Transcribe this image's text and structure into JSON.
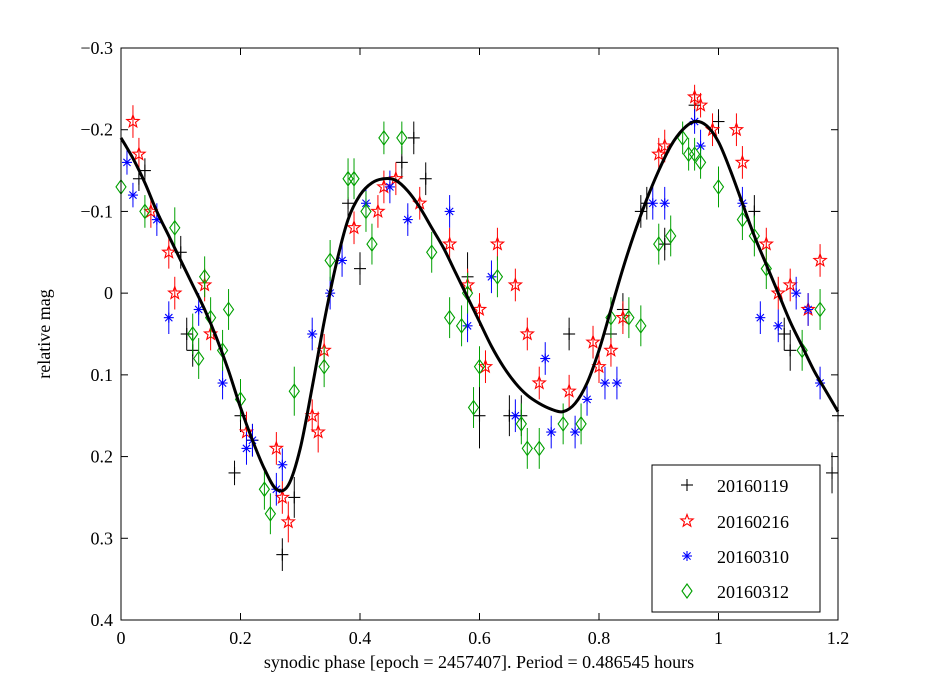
{
  "chart_data": {
    "type": "scatter",
    "title": "",
    "xlabel": "synodic phase [epoch = 2457407].  Period = 0.486545 hours",
    "ylabel": "relative mag",
    "xlim": [
      0,
      1.2
    ],
    "ylim": [
      -0.3,
      0.4
    ],
    "y_inverted": true,
    "grid": false,
    "x_ticks": [
      0,
      0.2,
      0.4,
      0.6,
      0.8,
      1,
      1.2
    ],
    "x_tick_labels": [
      "0",
      "0.2",
      "0.4",
      "0.6",
      "0.8",
      "1",
      "1.2"
    ],
    "y_ticks": [
      -0.3,
      -0.2,
      -0.1,
      0,
      0.1,
      0.2,
      0.3,
      0.4
    ],
    "y_tick_labels": [
      "−0.3",
      "−0.2",
      "−0.1",
      "0",
      "0.1",
      "0.2",
      "0.3",
      "0.4"
    ],
    "legend_position": "bottom-right",
    "series": [
      {
        "name": "20160119",
        "marker": "plus",
        "color": "#000000",
        "x": [
          0.03,
          0.04,
          0.1,
          0.11,
          0.12,
          0.19,
          0.2,
          0.22,
          0.27,
          0.29,
          0.38,
          0.4,
          0.47,
          0.49,
          0.51,
          0.58,
          0.6,
          0.65,
          0.67,
          0.75,
          0.82,
          0.84,
          0.87,
          0.88,
          0.91,
          0.96,
          1.0,
          1.06,
          1.11,
          1.12,
          1.19,
          1.2
        ],
        "y": [
          -0.14,
          -0.15,
          -0.05,
          0.05,
          0.07,
          0.22,
          0.15,
          0.18,
          0.32,
          0.25,
          -0.11,
          -0.03,
          -0.16,
          -0.19,
          -0.14,
          -0.02,
          0.15,
          0.15,
          0.15,
          0.05,
          0.05,
          0.02,
          -0.1,
          -0.11,
          -0.06,
          -0.23,
          -0.21,
          -0.1,
          0.05,
          0.07,
          0.22,
          0.15
        ],
        "err": [
          0.015,
          0.015,
          0.02,
          0.02,
          0.02,
          0.015,
          0.02,
          0.02,
          0.02,
          0.025,
          0.02,
          0.02,
          0.02,
          0.02,
          0.02,
          0.03,
          0.04,
          0.025,
          0.025,
          0.02,
          0.02,
          0.02,
          0.02,
          0.02,
          0.02,
          0.015,
          0.015,
          0.02,
          0.02,
          0.025,
          0.025,
          0.02
        ]
      },
      {
        "name": "20160216",
        "marker": "star",
        "color": "#ff0000",
        "x": [
          0.02,
          0.03,
          0.05,
          0.08,
          0.09,
          0.14,
          0.15,
          0.21,
          0.26,
          0.27,
          0.28,
          0.32,
          0.33,
          0.34,
          0.39,
          0.43,
          0.44,
          0.46,
          0.5,
          0.55,
          0.58,
          0.6,
          0.61,
          0.63,
          0.66,
          0.68,
          0.7,
          0.75,
          0.79,
          0.8,
          0.82,
          0.84,
          0.9,
          0.91,
          0.96,
          0.97,
          0.99,
          1.03,
          1.04,
          1.08,
          1.1,
          1.12,
          1.15,
          1.17
        ],
        "y": [
          -0.21,
          -0.17,
          -0.1,
          -0.05,
          0.0,
          -0.01,
          0.05,
          0.17,
          0.19,
          0.25,
          0.28,
          0.15,
          0.17,
          0.07,
          -0.08,
          -0.1,
          -0.13,
          -0.14,
          -0.11,
          -0.06,
          -0.01,
          0.02,
          0.09,
          -0.06,
          -0.01,
          0.05,
          0.11,
          0.12,
          0.06,
          0.09,
          0.07,
          0.03,
          -0.17,
          -0.18,
          -0.24,
          -0.23,
          -0.2,
          -0.2,
          -0.16,
          -0.06,
          0.0,
          -0.01,
          0.02,
          -0.04
        ],
        "err": [
          0.02,
          0.02,
          0.02,
          0.02,
          0.02,
          0.02,
          0.02,
          0.025,
          0.02,
          0.02,
          0.025,
          0.02,
          0.025,
          0.02,
          0.02,
          0.02,
          0.02,
          0.02,
          0.02,
          0.02,
          0.02,
          0.02,
          0.02,
          0.02,
          0.02,
          0.02,
          0.02,
          0.02,
          0.02,
          0.02,
          0.02,
          0.02,
          0.02,
          0.02,
          0.015,
          0.015,
          0.02,
          0.02,
          0.02,
          0.02,
          0.02,
          0.02,
          0.02,
          0.02
        ]
      },
      {
        "name": "20160310",
        "marker": "asterisk",
        "color": "#0000ff",
        "x": [
          0.01,
          0.02,
          0.06,
          0.08,
          0.13,
          0.17,
          0.21,
          0.22,
          0.26,
          0.27,
          0.32,
          0.35,
          0.37,
          0.41,
          0.45,
          0.48,
          0.55,
          0.58,
          0.62,
          0.66,
          0.71,
          0.72,
          0.76,
          0.78,
          0.81,
          0.83,
          0.89,
          0.91,
          0.96,
          0.97,
          1.04,
          1.07,
          1.1,
          1.13,
          1.15,
          1.17
        ],
        "y": [
          -0.16,
          -0.12,
          -0.09,
          0.03,
          0.02,
          0.11,
          0.19,
          0.18,
          0.24,
          0.21,
          0.05,
          0.0,
          -0.04,
          -0.11,
          -0.13,
          -0.09,
          -0.1,
          0.04,
          -0.02,
          0.15,
          0.08,
          0.17,
          0.17,
          0.13,
          0.11,
          0.11,
          -0.11,
          -0.11,
          -0.21,
          -0.18,
          -0.11,
          0.03,
          0.04,
          0.0,
          0.02,
          0.11
        ],
        "err": [
          0.015,
          0.015,
          0.02,
          0.02,
          0.02,
          0.02,
          0.02,
          0.02,
          0.02,
          0.02,
          0.02,
          0.02,
          0.02,
          0.02,
          0.02,
          0.02,
          0.02,
          0.02,
          0.02,
          0.02,
          0.02,
          0.02,
          0.02,
          0.02,
          0.02,
          0.02,
          0.02,
          0.02,
          0.015,
          0.02,
          0.02,
          0.02,
          0.02,
          0.02,
          0.02,
          0.02
        ]
      },
      {
        "name": "20160312",
        "marker": "diamond",
        "color": "#00a000",
        "x": [
          0.0,
          0.04,
          0.09,
          0.12,
          0.13,
          0.14,
          0.15,
          0.17,
          0.18,
          0.2,
          0.24,
          0.25,
          0.29,
          0.34,
          0.35,
          0.38,
          0.39,
          0.41,
          0.42,
          0.44,
          0.47,
          0.52,
          0.55,
          0.57,
          0.58,
          0.59,
          0.6,
          0.63,
          0.67,
          0.68,
          0.7,
          0.74,
          0.77,
          0.82,
          0.85,
          0.87,
          0.9,
          0.92,
          0.94,
          0.95,
          0.96,
          0.97,
          1.0,
          1.04,
          1.06,
          1.08,
          1.14,
          1.17
        ],
        "y": [
          -0.13,
          -0.1,
          -0.08,
          0.05,
          0.08,
          -0.02,
          0.03,
          0.07,
          0.02,
          0.13,
          0.24,
          0.27,
          0.12,
          0.09,
          -0.04,
          -0.14,
          -0.14,
          -0.1,
          -0.06,
          -0.19,
          -0.19,
          -0.05,
          0.03,
          0.04,
          0.0,
          0.14,
          0.09,
          -0.02,
          0.16,
          0.19,
          0.19,
          0.16,
          0.16,
          0.03,
          0.03,
          0.04,
          -0.06,
          -0.07,
          -0.19,
          -0.17,
          -0.17,
          -0.16,
          -0.13,
          -0.09,
          -0.07,
          -0.03,
          0.07,
          0.02
        ],
        "err": [
          0.02,
          0.02,
          0.025,
          0.025,
          0.025,
          0.025,
          0.025,
          0.025,
          0.025,
          0.025,
          0.025,
          0.025,
          0.03,
          0.025,
          0.025,
          0.025,
          0.025,
          0.025,
          0.025,
          0.02,
          0.02,
          0.025,
          0.025,
          0.025,
          0.025,
          0.025,
          0.025,
          0.025,
          0.025,
          0.025,
          0.025,
          0.025,
          0.025,
          0.025,
          0.025,
          0.025,
          0.025,
          0.025,
          0.02,
          0.02,
          0.02,
          0.02,
          0.025,
          0.025,
          0.025,
          0.025,
          0.025,
          0.025
        ]
      }
    ],
    "fit_curve": {
      "name": "fit",
      "color": "#000000",
      "x": [
        0.0,
        0.02,
        0.04,
        0.06,
        0.08,
        0.1,
        0.12,
        0.14,
        0.16,
        0.18,
        0.2,
        0.22,
        0.24,
        0.26,
        0.28,
        0.3,
        0.32,
        0.34,
        0.36,
        0.38,
        0.4,
        0.42,
        0.44,
        0.46,
        0.48,
        0.5,
        0.52,
        0.54,
        0.56,
        0.58,
        0.6,
        0.62,
        0.64,
        0.66,
        0.68,
        0.7,
        0.72,
        0.74,
        0.76,
        0.78,
        0.8,
        0.82,
        0.84,
        0.86,
        0.88,
        0.9,
        0.92,
        0.94,
        0.96,
        0.98,
        1.0,
        1.02,
        1.04,
        1.06,
        1.08,
        1.1,
        1.12,
        1.14,
        1.16,
        1.18,
        1.2
      ],
      "y": [
        -0.19,
        -0.165,
        -0.135,
        -0.1,
        -0.07,
        -0.04,
        -0.01,
        0.02,
        0.055,
        0.095,
        0.14,
        0.18,
        0.215,
        0.24,
        0.235,
        0.19,
        0.115,
        0.035,
        -0.035,
        -0.09,
        -0.12,
        -0.135,
        -0.14,
        -0.138,
        -0.125,
        -0.105,
        -0.08,
        -0.055,
        -0.025,
        0.005,
        0.035,
        0.065,
        0.09,
        0.11,
        0.125,
        0.135,
        0.142,
        0.145,
        0.135,
        0.11,
        0.07,
        0.02,
        -0.03,
        -0.075,
        -0.115,
        -0.15,
        -0.18,
        -0.2,
        -0.21,
        -0.205,
        -0.185,
        -0.15,
        -0.11,
        -0.07,
        -0.035,
        0.0,
        0.035,
        0.065,
        0.095,
        0.12,
        0.145
      ]
    }
  }
}
